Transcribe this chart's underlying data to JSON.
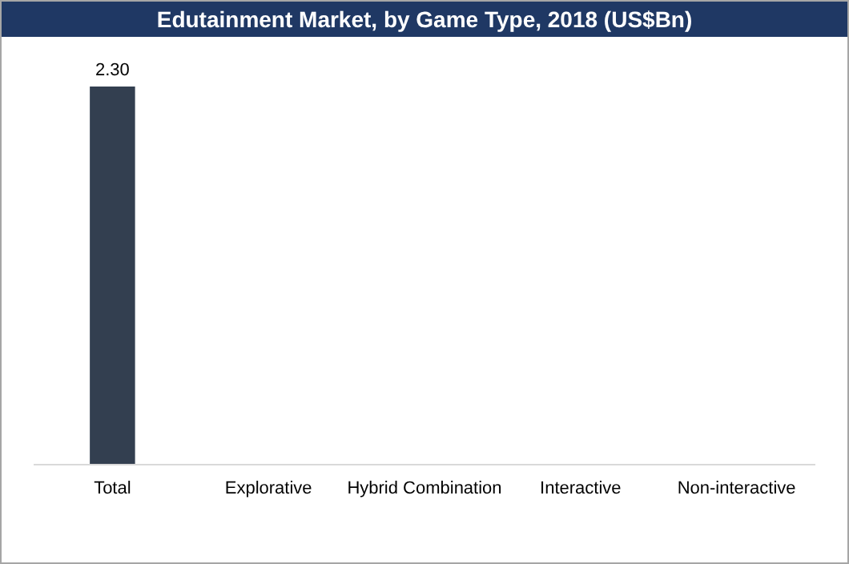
{
  "chart_data": {
    "type": "bar",
    "title": "Edutainment Market, by Game Type, 2018 (US$Bn)",
    "categories": [
      "Total",
      "Explorative",
      "Hybrid Combination",
      "Interactive",
      "Non-interactive"
    ],
    "values": [
      2.3,
      null,
      null,
      null,
      null
    ],
    "value_labels": [
      "2.30",
      null,
      null,
      null,
      null
    ],
    "color": "#333f50",
    "ylim": [
      0,
      2.3
    ]
  }
}
